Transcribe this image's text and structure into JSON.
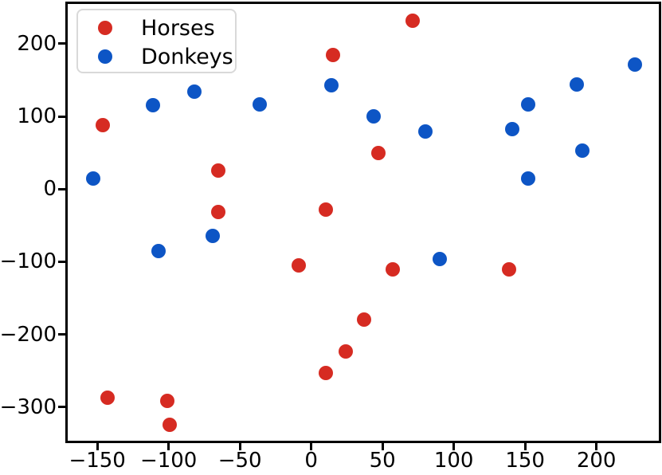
{
  "figure": {
    "background_color": "#ffffff",
    "axis_color": "#000000"
  },
  "chart_data": {
    "type": "scatter",
    "title": "",
    "xlabel": "",
    "ylabel": "",
    "grid": false,
    "xlim": [
      -171.6,
      244.6
    ],
    "ylim": [
      -348.1,
      256.4
    ],
    "x_ticks": [
      -150,
      -100,
      -50,
      0,
      50,
      100,
      150,
      200
    ],
    "y_ticks": [
      200,
      100,
      0,
      -100,
      -200,
      -300
    ],
    "legend": {
      "position": "upper-left",
      "border_color": "#d9d9d9",
      "background_color": "#ffffff"
    },
    "series": [
      {
        "name": "Horses",
        "color": "#d62b22",
        "points": [
          [
            15,
            185
          ],
          [
            71,
            232
          ],
          [
            -146,
            88
          ],
          [
            -65,
            25
          ],
          [
            -65,
            -32
          ],
          [
            10,
            -28
          ],
          [
            47,
            50
          ],
          [
            -9,
            -105
          ],
          [
            57,
            -111
          ],
          [
            139,
            -111
          ],
          [
            37,
            -180
          ],
          [
            24,
            -224
          ],
          [
            10,
            -253
          ],
          [
            -143,
            -287
          ],
          [
            -101,
            -292
          ],
          [
            -99,
            -324
          ]
        ]
      },
      {
        "name": "Donkeys",
        "color": "#0d55c5",
        "points": [
          [
            -153,
            14
          ],
          [
            -111,
            115
          ],
          [
            -82,
            134
          ],
          [
            -36,
            116
          ],
          [
            14,
            143
          ],
          [
            44,
            100
          ],
          [
            80,
            79
          ],
          [
            141,
            82
          ],
          [
            152,
            116
          ],
          [
            152,
            14
          ],
          [
            186,
            144
          ],
          [
            190,
            53
          ],
          [
            227,
            171
          ],
          [
            90,
            -96
          ],
          [
            -69,
            -64
          ],
          [
            -107,
            -85
          ]
        ]
      }
    ]
  }
}
